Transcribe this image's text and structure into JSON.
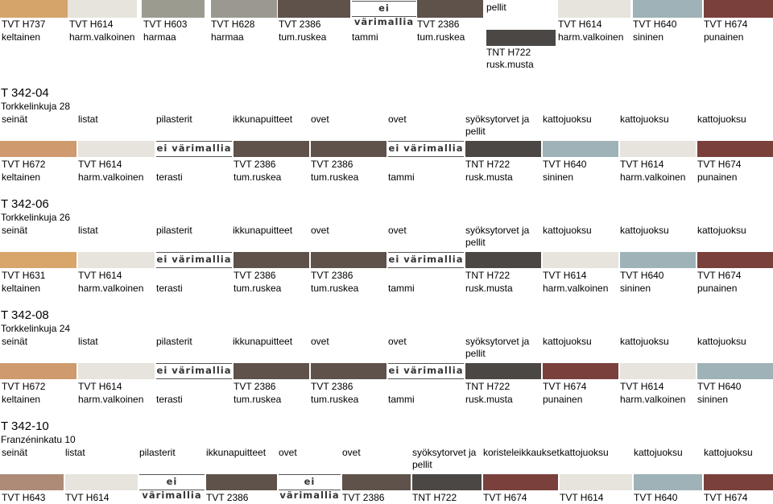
{
  "colors": {
    "H737": "#d4a46a",
    "H614": "#e7e3dd",
    "H603": "#9c9b90",
    "H628": "#9b9891",
    "T2386": "#5e524b",
    "H640": "#9eb2b7",
    "H674": "#7a403c",
    "H722": "#4b4744",
    "H672": "#cf9a6e",
    "H631": "#d8a56b",
    "H643": "#ad8b76"
  },
  "evm_label": "ei värimallia",
  "top": {
    "pellit": "pellit",
    "codes": [
      "TVT H737",
      "TVT H614",
      "TVT H603",
      "TVT H628",
      "TVT 2386",
      "TVT 2386",
      "TVT H614",
      "TVT H640",
      "TVT H674"
    ],
    "names": [
      "keltainen",
      "harm.valkoinen",
      "harmaa",
      "harmaa",
      "tum.ruskea",
      "tammi",
      "tum.ruskea",
      "harm.valkoinen",
      "sininen",
      "punainen"
    ],
    "tnt_code": "TNT H722",
    "tnt_name": "rusk.musta"
  },
  "headers": [
    "seinät",
    "listat",
    "pilasterit",
    "ikkunapuitteet",
    "ovet",
    "ovet",
    "syöksytorvet ja",
    "kattojuoksu",
    "kattojuoksu",
    "kattojuoksu"
  ],
  "pellit": "pellit",
  "s04": {
    "title": "T 342-04",
    "street": "Torkkelinkuja 28",
    "codes": [
      "TVT H672",
      "TVT H614",
      "TVT 2386",
      "TVT 2386",
      "TNT H722",
      "TVT H640",
      "TVT H614",
      "TVT H674"
    ],
    "names": [
      "keltainen",
      "harm.valkoinen",
      "terasti",
      "tum.ruskea",
      "tum.ruskea",
      "tammi",
      "rusk.musta",
      "sininen",
      "harm.valkoinen",
      "punainen"
    ]
  },
  "s06": {
    "title": "T 342-06",
    "street": "Torkkelinkuja 26",
    "codes": [
      "TVT H631",
      "TVT H614",
      "TVT 2386",
      "TVT 2386",
      "TNT H722",
      "TVT H614",
      "TVT H640",
      "TVT H674"
    ],
    "names": [
      "keltainen",
      "harm.valkoinen",
      "terasti",
      "tum.ruskea",
      "tum.ruskea",
      "tammi",
      "rusk.musta",
      "harm.valkoinen",
      "sininen",
      "punainen"
    ]
  },
  "s08": {
    "title": "T 342-08",
    "street": "Torkkelinkuja 24",
    "codes": [
      "TVT H672",
      "TVT H614",
      "TVT 2386",
      "TVT 2386",
      "TNT H722",
      "TVT H674",
      "TVT H614",
      "TVT H640"
    ],
    "names": [
      "keltainen",
      "harm.valkoinen",
      "terasti",
      "tum.ruskea",
      "tum.ruskea",
      "tammi",
      "rusk.musta",
      "punainen",
      "harm.valkoinen",
      "sininen"
    ]
  },
  "s10": {
    "title": "T 342-10",
    "street": "Franzéninkatu 10",
    "headers": [
      "seinät",
      "listat",
      "pilasterit",
      "ikkunapuitteet",
      "ovet",
      "ovet",
      "syöksytorvet ja",
      "koristeleikkaukset",
      "kattojuoksu",
      "kattojuoksu",
      "kattojuoksu"
    ],
    "codes": [
      "TVT H643",
      "TVT H614",
      "TVT 2386",
      "TVT 2386",
      "TNT H722",
      "TVT H674",
      "TVT H614",
      "TVT H640",
      "TVT H674"
    ]
  }
}
